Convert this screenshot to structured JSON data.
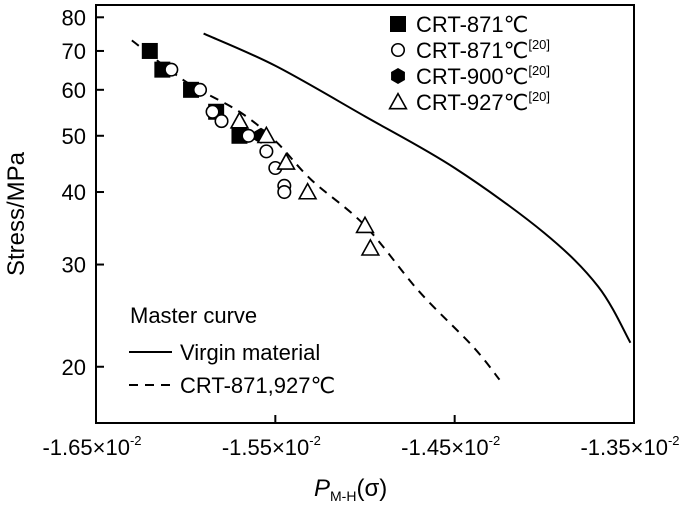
{
  "chart_data": {
    "type": "scatter",
    "xlabel": {
      "main": "P",
      "sub": "M-H",
      "paren": "(σ)"
    },
    "ylabel": "Stress/MPa",
    "yscale": "log",
    "xlim": [
      -0.0165,
      -0.0135
    ],
    "ylim": [
      16,
      84
    ],
    "x_ticks": [
      {
        "value": -0.0165,
        "mantissa": "-1.65×10",
        "exp": "-2"
      },
      {
        "value": -0.0155,
        "mantissa": "-1.55×10",
        "exp": "-2"
      },
      {
        "value": -0.0145,
        "mantissa": "-1.45×10",
        "exp": "-2"
      },
      {
        "value": -0.0135,
        "mantissa": "-1.35×10",
        "exp": "-2"
      }
    ],
    "y_ticks": [
      {
        "value": 20,
        "label": "20"
      },
      {
        "value": 30,
        "label": "30"
      },
      {
        "value": 40,
        "label": "40"
      },
      {
        "value": 50,
        "label": "50"
      },
      {
        "value": 60,
        "label": "60"
      },
      {
        "value": 70,
        "label": "70"
      },
      {
        "value": 80,
        "label": "80"
      }
    ],
    "series": [
      {
        "name": "CRT-871℃",
        "sup": "",
        "marker": "square-filled",
        "points": [
          [
            -0.0162,
            70
          ],
          [
            -0.01613,
            65
          ],
          [
            -0.01597,
            60
          ],
          [
            -0.01583,
            55
          ],
          [
            -0.0157,
            50
          ]
        ]
      },
      {
        "name": "CRT-871℃",
        "sup": "[20]",
        "marker": "circle-open",
        "points": [
          [
            -0.01608,
            65
          ],
          [
            -0.01592,
            60
          ],
          [
            -0.01585,
            55
          ],
          [
            -0.0158,
            53
          ],
          [
            -0.01565,
            50
          ],
          [
            -0.01555,
            47
          ],
          [
            -0.0155,
            44
          ],
          [
            -0.01545,
            41
          ],
          [
            -0.01545,
            40
          ]
        ]
      },
      {
        "name": "CRT-900℃",
        "sup": "[20]",
        "marker": "hexagon-filled",
        "points": [
          [
            -0.01558,
            50
          ]
        ]
      },
      {
        "name": "CRT-927℃",
        "sup": "[20]",
        "marker": "triangle-open",
        "points": [
          [
            -0.0157,
            53
          ],
          [
            -0.01555,
            50
          ],
          [
            -0.01544,
            45
          ],
          [
            -0.01532,
            40
          ],
          [
            -0.015,
            35
          ],
          [
            -0.01497,
            32
          ]
        ]
      }
    ],
    "lines": [
      {
        "name": "Virgin material",
        "style": "solid",
        "points": [
          [
            -0.0159,
            75
          ],
          [
            -0.0155,
            66
          ],
          [
            -0.015,
            54
          ],
          [
            -0.0145,
            44
          ],
          [
            -0.014,
            34
          ],
          [
            -0.0137,
            27.5
          ],
          [
            -0.01352,
            22
          ]
        ]
      },
      {
        "name": "CRT-871,927℃",
        "style": "dashed",
        "points": [
          [
            -0.0163,
            73
          ],
          [
            -0.016,
            62
          ],
          [
            -0.0157,
            55
          ],
          [
            -0.0155,
            49
          ],
          [
            -0.0153,
            42
          ],
          [
            -0.015,
            35
          ],
          [
            -0.0147,
            27
          ],
          [
            -0.0144,
            21.7
          ],
          [
            -0.01425,
            19
          ]
        ]
      }
    ],
    "master_legend_title": "Master curve",
    "legend_position": "top-right (markers), bottom-left (lines)"
  }
}
